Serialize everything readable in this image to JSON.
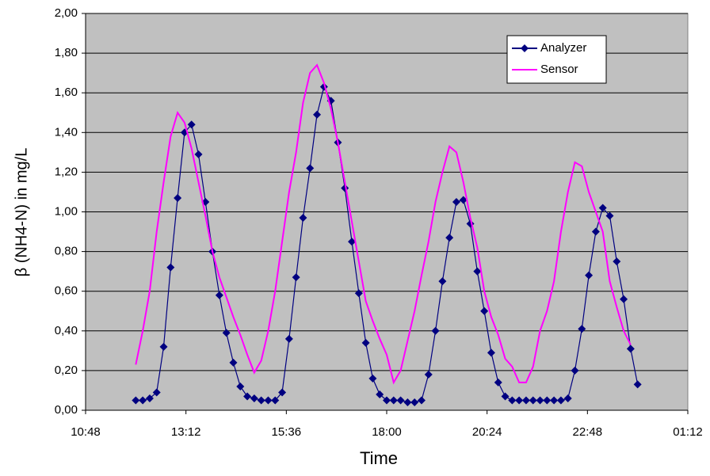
{
  "chart_data": {
    "type": "line",
    "x_label": "Time",
    "y_label": "β (NH4-N) in mg/L",
    "x": [
      720,
      730,
      740,
      750,
      760,
      770,
      780,
      790,
      800,
      810,
      820,
      830,
      840,
      850,
      860,
      870,
      880,
      890,
      900,
      910,
      920,
      930,
      940,
      950,
      960,
      970,
      980,
      990,
      1000,
      1010,
      1020,
      1030,
      1040,
      1050,
      1060,
      1070,
      1080,
      1090,
      1100,
      1110,
      1120,
      1130,
      1140,
      1150,
      1160,
      1170,
      1180,
      1190,
      1200,
      1210,
      1220,
      1230,
      1240,
      1250,
      1260,
      1270,
      1280,
      1290,
      1300,
      1310,
      1320,
      1330,
      1340,
      1350,
      1360,
      1370,
      1380,
      1390,
      1400,
      1410,
      1420,
      1430,
      1440
    ],
    "series": [
      {
        "name": "Analyzer",
        "color": "#000080",
        "marker": "diamond",
        "values": [
          0.05,
          0.05,
          0.06,
          0.09,
          0.32,
          0.72,
          1.07,
          1.4,
          1.44,
          1.29,
          1.05,
          0.8,
          0.58,
          0.39,
          0.24,
          0.12,
          0.07,
          0.06,
          0.05,
          0.05,
          0.05,
          0.09,
          0.36,
          0.67,
          0.97,
          1.22,
          1.49,
          1.63,
          1.56,
          1.35,
          1.12,
          0.85,
          0.59,
          0.34,
          0.16,
          0.08,
          0.05,
          0.05,
          0.05,
          0.04,
          0.04,
          0.05,
          0.18,
          0.4,
          0.65,
          0.87,
          1.05,
          1.06,
          0.94,
          0.7,
          0.5,
          0.29,
          0.14,
          0.07,
          0.05,
          0.05,
          0.05,
          0.05,
          0.05,
          0.05,
          0.05,
          0.05,
          0.06,
          0.2,
          0.41,
          0.68,
          0.9,
          1.02,
          0.98,
          0.75,
          0.56,
          0.31,
          0.13
        ]
      },
      {
        "name": "Sensor",
        "color": "#ff00ff",
        "values": [
          0.23,
          0.4,
          0.6,
          0.9,
          1.15,
          1.38,
          1.5,
          1.45,
          1.32,
          1.15,
          0.98,
          0.8,
          0.67,
          0.57,
          0.47,
          0.38,
          0.28,
          0.19,
          0.25,
          0.4,
          0.6,
          0.85,
          1.1,
          1.3,
          1.55,
          1.7,
          1.74,
          1.65,
          1.52,
          1.35,
          1.15,
          0.95,
          0.75,
          0.55,
          0.45,
          0.36,
          0.28,
          0.14,
          0.2,
          0.35,
          0.5,
          0.68,
          0.85,
          1.05,
          1.2,
          1.33,
          1.3,
          1.15,
          0.97,
          0.82,
          0.6,
          0.47,
          0.38,
          0.26,
          0.22,
          0.14,
          0.14,
          0.22,
          0.4,
          0.5,
          0.65,
          0.9,
          1.1,
          1.25,
          1.23,
          1.1,
          1.0,
          0.9,
          0.65,
          0.52,
          0.4,
          0.33,
          null
        ]
      }
    ],
    "xlim": [
      648,
      1512
    ],
    "xticks": [
      {
        "value": 648,
        "label": "10:48"
      },
      {
        "value": 792,
        "label": "13:12"
      },
      {
        "value": 936,
        "label": "15:36"
      },
      {
        "value": 1080,
        "label": "18:00"
      },
      {
        "value": 1224,
        "label": "20:24"
      },
      {
        "value": 1368,
        "label": "22:48"
      },
      {
        "value": 1512,
        "label": "01:12"
      }
    ],
    "ylim": [
      0,
      2
    ],
    "yticks": [
      {
        "value": 0,
        "label": "0,00"
      },
      {
        "value": 0.2,
        "label": "0,20"
      },
      {
        "value": 0.4,
        "label": "0,40"
      },
      {
        "value": 0.6,
        "label": "0,60"
      },
      {
        "value": 0.8,
        "label": "0,80"
      },
      {
        "value": 1,
        "label": "1,00"
      },
      {
        "value": 1.2,
        "label": "1,20"
      },
      {
        "value": 1.4,
        "label": "1,40"
      },
      {
        "value": 1.6,
        "label": "1,60"
      },
      {
        "value": 1.8,
        "label": "1,80"
      },
      {
        "value": 2,
        "label": "2,00"
      }
    ],
    "grid": true,
    "legend": "upper right",
    "plot_background": "#c0c0c0"
  }
}
